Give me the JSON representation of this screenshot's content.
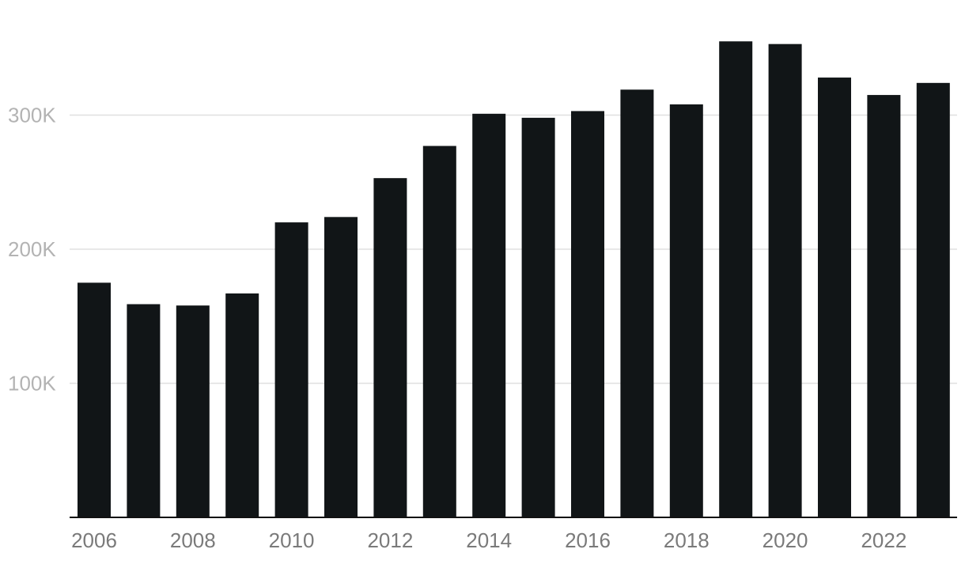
{
  "chart_data": {
    "type": "bar",
    "categories": [
      "2006",
      "2007",
      "2008",
      "2009",
      "2010",
      "2011",
      "2012",
      "2013",
      "2014",
      "2015",
      "2016",
      "2017",
      "2018",
      "2019",
      "2020",
      "2021",
      "2022",
      "2023"
    ],
    "values": [
      175000,
      159000,
      158000,
      167000,
      220000,
      224000,
      253000,
      277000,
      301000,
      298000,
      303000,
      319000,
      308000,
      355000,
      353000,
      328000,
      315000,
      324000
    ],
    "x_tick_labels": [
      {
        "category": "2006",
        "label": "2006"
      },
      {
        "category": "2008",
        "label": "2008"
      },
      {
        "category": "2010",
        "label": "2010"
      },
      {
        "category": "2012",
        "label": "2012"
      },
      {
        "category": "2014",
        "label": "2014"
      },
      {
        "category": "2016",
        "label": "2016"
      },
      {
        "category": "2018",
        "label": "2018"
      },
      {
        "category": "2020",
        "label": "2020"
      },
      {
        "category": "2022",
        "label": "2022"
      }
    ],
    "y_ticks": [
      {
        "value": 100000,
        "label": "100K"
      },
      {
        "value": 200000,
        "label": "200K"
      },
      {
        "value": 300000,
        "label": "300K"
      }
    ],
    "ylim": [
      0,
      380000
    ],
    "grid": true,
    "title": "",
    "xlabel": "",
    "ylabel": "",
    "colors": {
      "bar": "#111517",
      "grid": "#e0e0e0",
      "baseline": "#111111",
      "y_tick_text": "#b3b3b3",
      "x_tick_text": "#7a7a7a"
    }
  }
}
